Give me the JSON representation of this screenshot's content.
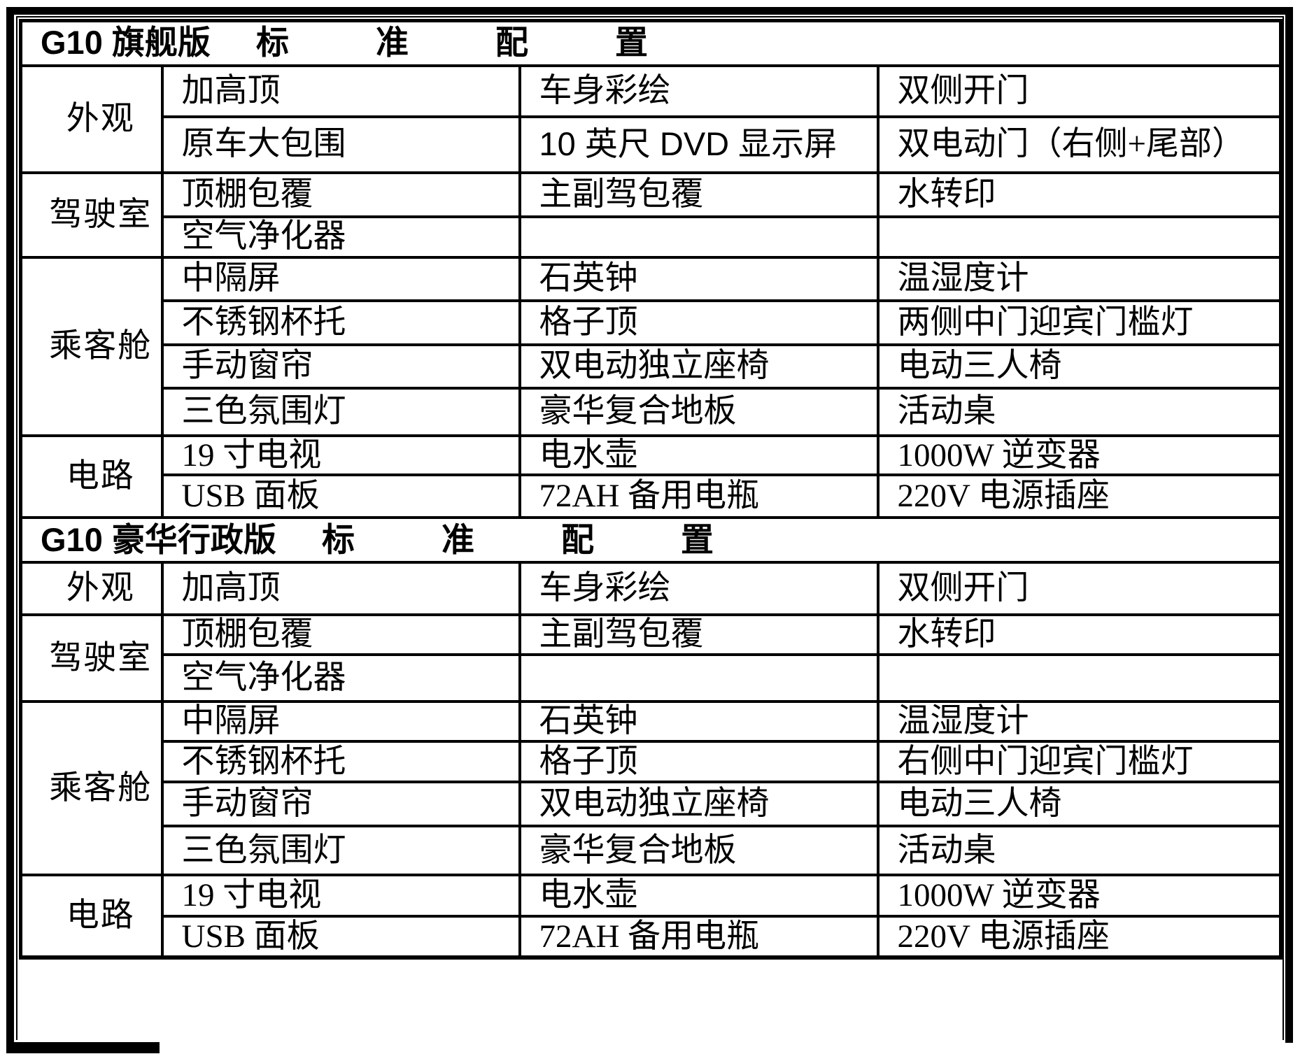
{
  "tables": [
    {
      "title": {
        "model": "G10 旗舰版",
        "spread": "标准配置"
      },
      "sections": [
        {
          "category": "外观",
          "rows": [
            [
              {
                "text": "加高顶"
              },
              {
                "text": "车身彩绘",
                "small": true
              },
              {
                "text": "双侧开门"
              }
            ],
            [
              {
                "text": "原车大包围"
              },
              {
                "text": "10 英尺 DVD 显示屏",
                "small": true,
                "sans": true
              },
              {
                "text": "双电动门（右侧+尾部）"
              }
            ]
          ]
        },
        {
          "category": "驾驶室",
          "rows": [
            [
              {
                "text": "顶棚包覆"
              },
              {
                "text": "主副驾包覆"
              },
              {
                "text": "水转印"
              }
            ],
            [
              {
                "text": "空气净化器"
              },
              {
                "text": ""
              },
              {
                "text": ""
              }
            ]
          ]
        },
        {
          "category": "乘客舱",
          "rows": [
            [
              {
                "text": "中隔屏"
              },
              {
                "text": "石英钟"
              },
              {
                "text": "温湿度计"
              }
            ],
            [
              {
                "text": "不锈钢杯托"
              },
              {
                "text": "格子顶"
              },
              {
                "text": "两侧中门迎宾门槛灯"
              }
            ],
            [
              {
                "text": "手动窗帘"
              },
              {
                "text": "双电动独立座椅",
                "small": true
              },
              {
                "text": "电动三人椅",
                "small": true
              }
            ],
            [
              {
                "text": "三色氛围灯"
              },
              {
                "text": "豪华复合地板"
              },
              {
                "text": "活动桌",
                "small": true
              }
            ]
          ]
        },
        {
          "category": "电路",
          "rows": [
            [
              {
                "text": "19 寸电视"
              },
              {
                "text": "电水壶"
              },
              {
                "text": "1000W  逆变器"
              }
            ],
            [
              {
                "text": "USB 面板"
              },
              {
                "text": "72AH 备用电瓶"
              },
              {
                "text": "220V 电源插座"
              }
            ]
          ]
        }
      ]
    },
    {
      "title": {
        "model": "G10 豪华行政版",
        "spread": "标准配置"
      },
      "sections": [
        {
          "category": "外观",
          "rows": [
            [
              {
                "text": "加高顶"
              },
              {
                "text": "车身彩绘",
                "small": true
              },
              {
                "text": "双侧开门"
              }
            ]
          ]
        },
        {
          "category": "驾驶室",
          "rows": [
            [
              {
                "text": "顶棚包覆"
              },
              {
                "text": "主副驾包覆"
              },
              {
                "text": "水转印"
              }
            ],
            [
              {
                "text": "空气净化器"
              },
              {
                "text": ""
              },
              {
                "text": ""
              }
            ]
          ]
        },
        {
          "category": "乘客舱",
          "rows": [
            [
              {
                "text": "中隔屏"
              },
              {
                "text": "石英钟"
              },
              {
                "text": "温湿度计"
              }
            ],
            [
              {
                "text": "不锈钢杯托"
              },
              {
                "text": "格子顶"
              },
              {
                "text": "右侧中门迎宾门槛灯"
              }
            ],
            [
              {
                "text": "手动窗帘"
              },
              {
                "text": "双电动独立座椅",
                "small": true
              },
              {
                "text": "电动三人椅",
                "small": true
              }
            ],
            [
              {
                "text": "三色氛围灯"
              },
              {
                "text": "豪华复合地板"
              },
              {
                "text": "活动桌",
                "small": true
              }
            ]
          ]
        },
        {
          "category": "电路",
          "rows": [
            [
              {
                "text": "19 寸电视"
              },
              {
                "text": "电水壶"
              },
              {
                "text": "1000W  逆变器"
              }
            ],
            [
              {
                "text": "USB 面板"
              },
              {
                "text": "72AH 备用电瓶"
              },
              {
                "text": "220V 电源插座"
              }
            ]
          ]
        }
      ]
    }
  ]
}
